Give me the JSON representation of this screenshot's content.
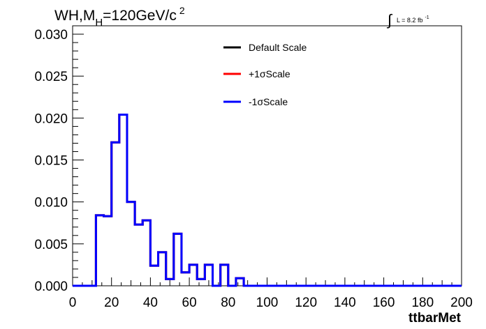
{
  "chart_data": {
    "type": "step-histogram",
    "title": "WH,M",
    "title_sub": "H",
    "title_rest": "=120GeV/c",
    "title_sup": "2",
    "lumi_label": "L = 8.2 fb",
    "lumi_sup": "-1",
    "xlabel": "ttbarMet",
    "ylabel": "",
    "xlim": [
      0,
      200
    ],
    "ylim": [
      0,
      0.031
    ],
    "x_ticks": [
      0,
      20,
      40,
      60,
      80,
      100,
      120,
      140,
      160,
      180,
      200
    ],
    "x_tick_labels": [
      "0",
      "20",
      "40",
      "60",
      "80",
      "100",
      "120",
      "140",
      "160",
      "180",
      "200"
    ],
    "y_ticks": [
      0,
      0.005,
      0.01,
      0.015,
      0.02,
      0.025,
      0.03
    ],
    "y_tick_labels": [
      "0.000",
      "0.005",
      "0.010",
      "0.015",
      "0.020",
      "0.025",
      "0.030"
    ],
    "bin_width": 4,
    "bin_edges_start": 0,
    "series": [
      {
        "name": "Default Scale",
        "color": "#000000",
        "values": [
          0,
          0,
          0,
          0.0084,
          0.0083,
          0.0171,
          0.0204,
          0.01,
          0.0073,
          0.0078,
          0.0024,
          0.004,
          0.0008,
          0.0062,
          0.0016,
          0.0025,
          0.0008,
          0.0025,
          0.0,
          0.0025,
          0.0,
          0.0009,
          0,
          0,
          0,
          0,
          0,
          0,
          0,
          0,
          0,
          0,
          0,
          0,
          0,
          0,
          0,
          0,
          0,
          0,
          0,
          0,
          0,
          0,
          0,
          0,
          0,
          0,
          0,
          0
        ]
      },
      {
        "name": "+1σScale",
        "color": "#ff0000",
        "values": [
          0,
          0,
          0,
          0.0084,
          0.0083,
          0.0171,
          0.0204,
          0.01,
          0.0073,
          0.0078,
          0.0024,
          0.004,
          0.0008,
          0.0062,
          0.0016,
          0.0025,
          0.0008,
          0.0025,
          0.0,
          0.0025,
          0.0,
          0.0009,
          0,
          0,
          0,
          0,
          0,
          0,
          0,
          0,
          0,
          0,
          0,
          0,
          0,
          0,
          0,
          0,
          0,
          0,
          0,
          0,
          0,
          0,
          0,
          0,
          0,
          0,
          0,
          0
        ]
      },
      {
        "name": "-1σScale",
        "color": "#0000ff",
        "values": [
          0,
          0,
          0,
          0.0084,
          0.0083,
          0.0171,
          0.0204,
          0.01,
          0.0073,
          0.0078,
          0.0024,
          0.004,
          0.0008,
          0.0062,
          0.0016,
          0.0025,
          0.0008,
          0.0025,
          0.0,
          0.0025,
          0.0,
          0.0009,
          0,
          0,
          0,
          0,
          0,
          0,
          0,
          0,
          0,
          0,
          0,
          0,
          0,
          0,
          0,
          0,
          0,
          0,
          0,
          0,
          0,
          0,
          0,
          0,
          0,
          0,
          0,
          0
        ]
      }
    ],
    "legend_position": "top-center",
    "grid": false
  }
}
